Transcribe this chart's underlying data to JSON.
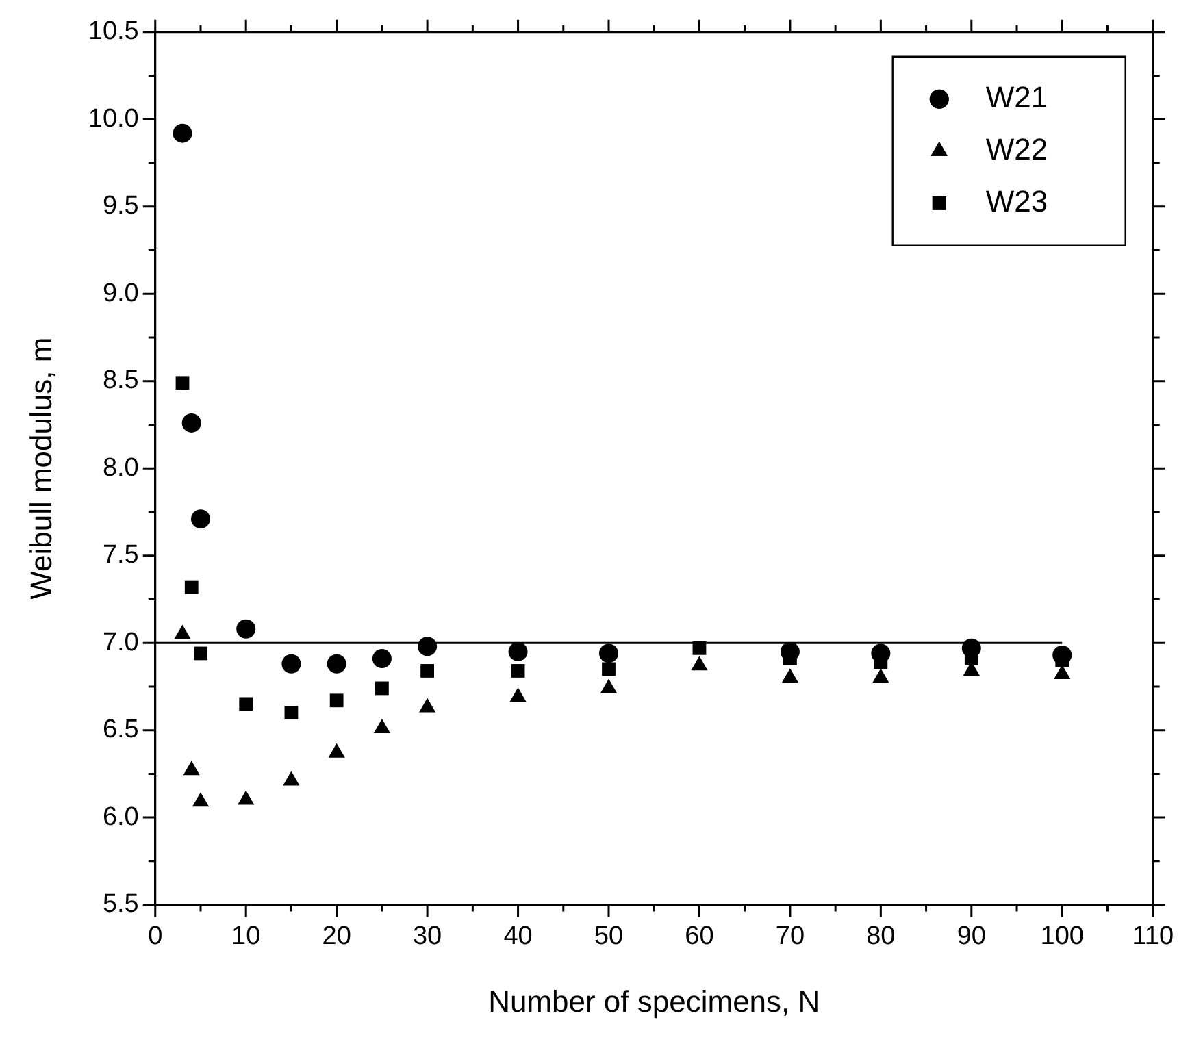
{
  "chart_data": {
    "type": "scatter",
    "xlabel": "Number of specimens, N",
    "ylabel": "Weibull modulus, m",
    "xlim": [
      0,
      110
    ],
    "ylim": [
      5.5,
      10.5
    ],
    "xticks": [
      0,
      {
        "value": 5,
        "label": null
      },
      10,
      {
        "value": 15,
        "label": null
      },
      20,
      {
        "value": 25,
        "label": null
      },
      30,
      {
        "value": 35,
        "label": null
      },
      40,
      {
        "value": 45,
        "label": null
      },
      50,
      {
        "value": 55,
        "label": null
      },
      60,
      {
        "value": 65,
        "label": null
      },
      70,
      {
        "value": 75,
        "label": null
      },
      80,
      {
        "value": 85,
        "label": null
      },
      90,
      {
        "value": 95,
        "label": null
      },
      100,
      {
        "value": 105,
        "label": null
      },
      110
    ],
    "yticks": [
      5.5,
      {
        "value": 5.75,
        "label": null
      },
      {
        "value": 6,
        "label": "6.0"
      },
      {
        "value": 6.25,
        "label": null
      },
      6.5,
      {
        "value": 6.75,
        "label": null
      },
      {
        "value": 7,
        "label": "7.0"
      },
      {
        "value": 7.25,
        "label": null
      },
      7.5,
      {
        "value": 7.75,
        "label": null
      },
      {
        "value": 8,
        "label": "8.0"
      },
      {
        "value": 8.25,
        "label": null
      },
      8.5,
      {
        "value": 8.75,
        "label": null
      },
      {
        "value": 9,
        "label": "9.0"
      },
      {
        "value": 9.25,
        "label": null
      },
      9.5,
      {
        "value": 9.75,
        "label": null
      },
      {
        "value": 10,
        "label": "10.0"
      },
      {
        "value": 10.25,
        "label": null
      },
      10.5
    ],
    "grid": false,
    "legend": "top right",
    "x": [
      3,
      4,
      5,
      10,
      15,
      20,
      25,
      30,
      40,
      50,
      60,
      70,
      80,
      90,
      100
    ],
    "series": [
      {
        "name": "W21",
        "color": "#000000",
        "marker": "circle",
        "values": [
          9.92,
          8.26,
          7.71,
          7.08,
          6.88,
          6.88,
          6.91,
          6.98,
          6.95,
          6.94,
          null,
          6.95,
          6.94,
          6.97,
          6.93
        ]
      },
      {
        "name": "W22",
        "color": "#000000",
        "marker": "triangle",
        "values": [
          7.05,
          6.27,
          6.09,
          6.1,
          6.21,
          6.37,
          6.51,
          6.63,
          6.69,
          6.74,
          6.87,
          6.8,
          6.8,
          6.84,
          6.82
        ]
      },
      {
        "name": "W23",
        "color": "#000000",
        "marker": "square",
        "values": [
          8.49,
          7.32,
          6.94,
          6.65,
          6.6,
          6.67,
          6.74,
          6.84,
          6.84,
          6.85,
          6.97,
          6.91,
          6.89,
          6.91,
          6.9
        ]
      },
      {
        "type": "line",
        "color": "#000000",
        "marker": "none",
        "x": [
          0,
          100
        ],
        "values": [
          7,
          7
        ]
      }
    ]
  }
}
